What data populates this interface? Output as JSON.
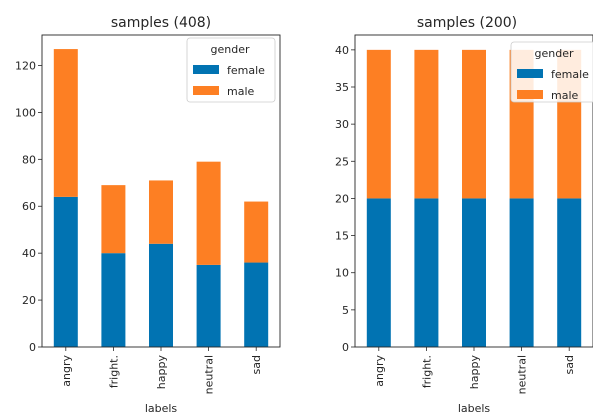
{
  "chart_data": [
    {
      "type": "bar",
      "stacked": true,
      "title": "samples (408)",
      "xlabel": "labels",
      "ylabel": "",
      "categories": [
        "angry",
        "fright.",
        "happy",
        "neutral",
        "sad"
      ],
      "series": [
        {
          "name": "female",
          "values": [
            64,
            40,
            44,
            35,
            36
          ]
        },
        {
          "name": "male",
          "values": [
            63,
            29,
            27,
            44,
            26
          ]
        }
      ],
      "ylim": [
        0,
        133
      ],
      "yticks": [
        "0",
        "20",
        "40",
        "60",
        "80",
        "100",
        "120"
      ],
      "legend": {
        "title": "gender",
        "position": "top-right"
      },
      "grid": false
    },
    {
      "type": "bar",
      "stacked": true,
      "title": "samples (200)",
      "xlabel": "labels",
      "ylabel": "",
      "categories": [
        "angry",
        "fright.",
        "happy",
        "neutral",
        "sad"
      ],
      "series": [
        {
          "name": "female",
          "values": [
            20,
            20,
            20,
            20,
            20
          ]
        },
        {
          "name": "male",
          "values": [
            20,
            20,
            20,
            20,
            20
          ]
        }
      ],
      "ylim": [
        0,
        42
      ],
      "yticks": [
        "0",
        "5",
        "10",
        "15",
        "20",
        "25",
        "30",
        "35",
        "40"
      ],
      "legend": {
        "title": "gender",
        "position": "top-right"
      },
      "grid": false
    }
  ],
  "colors": {
    "female": "#0173b2",
    "male": "#fd7f23",
    "axes": "#262626"
  }
}
